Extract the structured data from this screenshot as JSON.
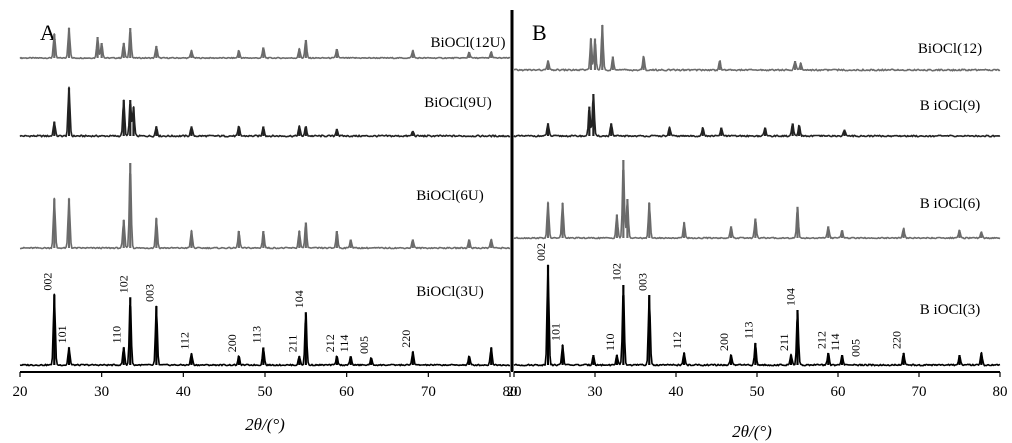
{
  "chart_data": [
    {
      "type": "line",
      "panel_label": "A",
      "xlabel": "2θ/(°)",
      "xlim": [
        20,
        80
      ],
      "x_ticks": [
        "20",
        "30",
        "40",
        "50",
        "60",
        "70",
        "80"
      ],
      "series": [
        {
          "name": "BiOCl(12U)",
          "color": "#6b6b6b",
          "peaks": [
            [
              24.2,
              0.8
            ],
            [
              26.0,
              1.0
            ],
            [
              29.5,
              0.7
            ],
            [
              30.0,
              0.5
            ],
            [
              32.7,
              0.5
            ],
            [
              33.5,
              1.0
            ],
            [
              36.7,
              0.4
            ],
            [
              41.0,
              0.25
            ],
            [
              46.8,
              0.25
            ],
            [
              49.8,
              0.35
            ],
            [
              54.2,
              0.3
            ],
            [
              55.0,
              0.6
            ],
            [
              58.8,
              0.3
            ],
            [
              68.1,
              0.25
            ],
            [
              75.0,
              0.2
            ],
            [
              77.7,
              0.2
            ]
          ]
        },
        {
          "name": "BiOCl(9U)",
          "color": "#222222",
          "peaks": [
            [
              24.2,
              0.3
            ],
            [
              26.0,
              1.0
            ],
            [
              32.7,
              0.75
            ],
            [
              33.5,
              0.75
            ],
            [
              33.9,
              0.6
            ],
            [
              36.7,
              0.2
            ],
            [
              41.0,
              0.2
            ],
            [
              46.8,
              0.2
            ],
            [
              49.8,
              0.2
            ],
            [
              54.2,
              0.2
            ],
            [
              55.0,
              0.2
            ],
            [
              58.8,
              0.15
            ],
            [
              68.1,
              0.1
            ]
          ]
        },
        {
          "name": "BiOCl(6U)",
          "color": "#6b6b6b",
          "peaks": [
            [
              24.2,
              0.58
            ],
            [
              26.0,
              0.58
            ],
            [
              32.7,
              0.33
            ],
            [
              33.5,
              1.0
            ],
            [
              36.7,
              0.35
            ],
            [
              41.0,
              0.2
            ],
            [
              46.8,
              0.2
            ],
            [
              49.8,
              0.2
            ],
            [
              54.2,
              0.2
            ],
            [
              55.0,
              0.3
            ],
            [
              58.8,
              0.2
            ],
            [
              60.5,
              0.1
            ],
            [
              68.1,
              0.1
            ],
            [
              75.0,
              0.1
            ],
            [
              77.7,
              0.1
            ]
          ]
        },
        {
          "name": "BiOCl(3U)",
          "color": "#000000",
          "peaks": [
            [
              24.2,
              0.8
            ],
            [
              26.0,
              0.2
            ],
            [
              32.7,
              0.2
            ],
            [
              33.5,
              0.77
            ],
            [
              36.7,
              0.67
            ],
            [
              41.0,
              0.13
            ],
            [
              46.8,
              0.1
            ],
            [
              49.8,
              0.2
            ],
            [
              54.2,
              0.1
            ],
            [
              55.0,
              0.6
            ],
            [
              58.8,
              0.1
            ],
            [
              60.5,
              0.1
            ],
            [
              63.0,
              0.08
            ],
            [
              68.1,
              0.15
            ],
            [
              75.0,
              0.1
            ],
            [
              77.7,
              0.2
            ]
          ]
        }
      ],
      "peak_labels": [
        {
          "text": "002",
          "x": 24.2
        },
        {
          "text": "101",
          "x": 26.0
        },
        {
          "text": "110",
          "x": 32.7
        },
        {
          "text": "102",
          "x": 33.5
        },
        {
          "text": "003",
          "x": 36.7
        },
        {
          "text": "112",
          "x": 41.0
        },
        {
          "text": "200",
          "x": 46.8
        },
        {
          "text": "113",
          "x": 49.8
        },
        {
          "text": "211",
          "x": 54.2
        },
        {
          "text": "104",
          "x": 55.0
        },
        {
          "text": "212",
          "x": 58.8
        },
        {
          "text": "114",
          "x": 60.5
        },
        {
          "text": "005",
          "x": 63.0
        },
        {
          "text": "220",
          "x": 68.1
        }
      ]
    },
    {
      "type": "line",
      "panel_label": "B",
      "xlabel": "2θ/(°)",
      "xlim": [
        20,
        80
      ],
      "x_ticks": [
        "20",
        "30",
        "40",
        "50",
        "60",
        "70",
        "80"
      ],
      "series": [
        {
          "name": "BiOCl(12)",
          "color": "#6b6b6b",
          "peaks": [
            [
              24.2,
              0.2
            ],
            [
              29.5,
              0.7
            ],
            [
              30.0,
              0.7
            ],
            [
              30.9,
              1.0
            ],
            [
              32.2,
              0.3
            ],
            [
              36.0,
              0.3
            ],
            [
              45.4,
              0.2
            ],
            [
              54.7,
              0.2
            ],
            [
              55.4,
              0.15
            ]
          ]
        },
        {
          "name": "B iOCl(9)",
          "color": "#222222",
          "peaks": [
            [
              24.2,
              0.3
            ],
            [
              29.3,
              0.7
            ],
            [
              29.8,
              1.0
            ],
            [
              32.0,
              0.3
            ],
            [
              39.2,
              0.2
            ],
            [
              43.3,
              0.2
            ],
            [
              45.6,
              0.2
            ],
            [
              51.0,
              0.2
            ],
            [
              54.4,
              0.3
            ],
            [
              55.2,
              0.25
            ],
            [
              60.8,
              0.15
            ]
          ]
        },
        {
          "name": "B iOCl(6)",
          "color": "#6b6b6b",
          "peaks": [
            [
              24.2,
              0.45
            ],
            [
              26.0,
              0.45
            ],
            [
              32.7,
              0.3
            ],
            [
              33.5,
              1.0
            ],
            [
              34.0,
              0.5
            ],
            [
              36.7,
              0.45
            ],
            [
              41.0,
              0.2
            ],
            [
              46.8,
              0.15
            ],
            [
              49.8,
              0.25
            ],
            [
              55.0,
              0.4
            ],
            [
              58.8,
              0.15
            ],
            [
              60.5,
              0.1
            ],
            [
              68.1,
              0.12
            ],
            [
              75.0,
              0.1
            ],
            [
              77.7,
              0.08
            ]
          ]
        },
        {
          "name": "B iOCl(3)",
          "color": "#000000",
          "peaks": [
            [
              24.2,
              1.0
            ],
            [
              26.0,
              0.2
            ],
            [
              29.8,
              0.1
            ],
            [
              32.7,
              0.1
            ],
            [
              33.5,
              0.8
            ],
            [
              36.7,
              0.7
            ],
            [
              41.0,
              0.12
            ],
            [
              46.8,
              0.1
            ],
            [
              49.8,
              0.22
            ],
            [
              54.2,
              0.1
            ],
            [
              55.0,
              0.55
            ],
            [
              58.8,
              0.12
            ],
            [
              60.5,
              0.1
            ],
            [
              68.1,
              0.12
            ],
            [
              75.0,
              0.1
            ],
            [
              77.7,
              0.12
            ]
          ]
        }
      ],
      "peak_labels": [
        {
          "text": "002",
          "x": 24.2
        },
        {
          "text": "101",
          "x": 26.0
        },
        {
          "text": "110",
          "x": 32.7
        },
        {
          "text": "102",
          "x": 33.5
        },
        {
          "text": "003",
          "x": 36.7
        },
        {
          "text": "112",
          "x": 41.0
        },
        {
          "text": "200",
          "x": 46.8
        },
        {
          "text": "113",
          "x": 49.8
        },
        {
          "text": "211",
          "x": 54.2
        },
        {
          "text": "104",
          "x": 55.0
        },
        {
          "text": "212",
          "x": 58.8
        },
        {
          "text": "114",
          "x": 60.5
        },
        {
          "text": "005",
          "x": 63.0
        },
        {
          "text": "220",
          "x": 68.1
        }
      ]
    }
  ]
}
